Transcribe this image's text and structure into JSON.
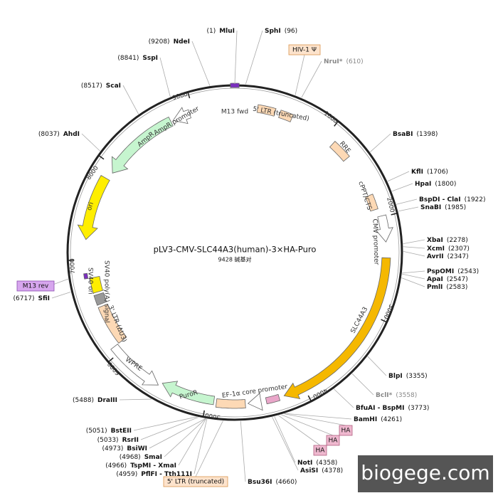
{
  "title": "pLV3-CMV-SLC44A3(human)-3×HA-Puro",
  "subtitle": "9428 碱基对",
  "sites": [
    {
      "name": "MluI",
      "position": "(1)"
    },
    {
      "name": "SphI",
      "position": "(96)"
    },
    {
      "name": "NdeI",
      "position": "(9208)"
    },
    {
      "name": "SspI",
      "position": "(8841)"
    },
    {
      "name": "NruI*",
      "position": "(610)"
    },
    {
      "name": "ScaI",
      "position": "(8517)"
    },
    {
      "name": "AhdI",
      "position": "(8037)"
    },
    {
      "name": "BsaBI",
      "position": "(1398)"
    },
    {
      "name": "KflI",
      "position": "(1706)"
    },
    {
      "name": "HpaI",
      "position": "(1800)"
    },
    {
      "name": "BspDI - ClaI",
      "position": "(1922)"
    },
    {
      "name": "SnaBI",
      "position": "(1985)"
    },
    {
      "name": "XbaI",
      "position": "(2278)"
    },
    {
      "name": "XcmI",
      "position": "(2307)"
    },
    {
      "name": "AvrII",
      "position": "(2347)"
    },
    {
      "name": "PspOMI",
      "position": "(2543)"
    },
    {
      "name": "ApaI",
      "position": "(2547)"
    },
    {
      "name": "PmlI",
      "position": "(2583)"
    },
    {
      "name": "SfiI",
      "position": "(6717)"
    },
    {
      "name": "BlpI",
      "position": "(3355)"
    },
    {
      "name": "BclI*",
      "position": "(3558)"
    },
    {
      "name": "BfuAI - BspMI",
      "position": "(3773)"
    },
    {
      "name": "DraIII",
      "position": "(5488)"
    },
    {
      "name": "BamHI",
      "position": "(4261)"
    },
    {
      "name": "BstEII",
      "position": "(5051)"
    },
    {
      "name": "RsrII",
      "position": "(5033)"
    },
    {
      "name": "BsiWI",
      "position": "(4973)"
    },
    {
      "name": "SmaI",
      "position": "(4968)"
    },
    {
      "name": "TspMI - XmaI",
      "position": "(4966)"
    },
    {
      "name": "PflFI - Tth111I",
      "position": "(4959)"
    },
    {
      "name": "NotI",
      "position": "(4358)"
    },
    {
      "name": "AsiSI",
      "position": "(4378)"
    },
    {
      "name": "Bsu36I",
      "position": "(4660)"
    }
  ],
  "outer_features": [
    "HIV-1 Ψ",
    "M13 rev",
    "5' LTR (truncated)",
    "HA",
    "HA",
    "HA"
  ],
  "features": [
    "M13 fwd",
    "5' LTR (truncated)",
    "RRE",
    "cPPT/CTS",
    "CMV promoter",
    "SLC44A3",
    "EF-1α core promoter",
    "PuroR",
    "WPRE",
    "3' LTR (ΔU3)",
    "SV40 poly(A) signal",
    "SV40 ori",
    "ori",
    "AmpR",
    "AmpR promoter"
  ],
  "ring_ticks": [
    "1000",
    "2000",
    "3000",
    "4000",
    "5000",
    "6000",
    "7000",
    "8000",
    "9000"
  ],
  "watermark": "biogege.com"
}
